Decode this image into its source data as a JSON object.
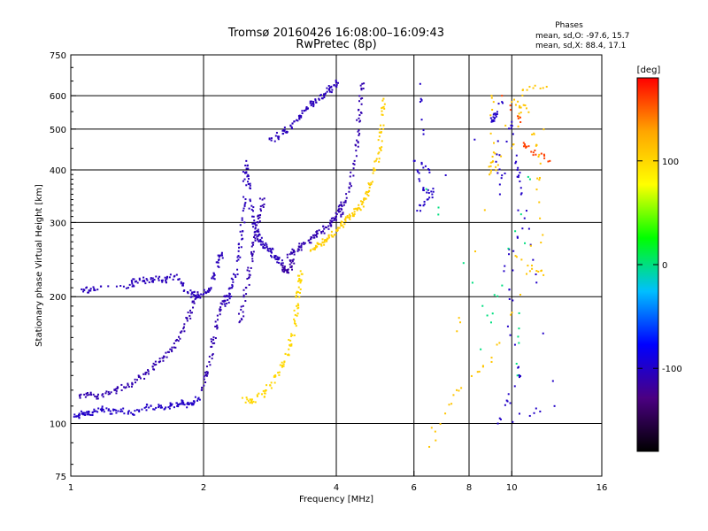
{
  "header": {
    "title_line1": "Tromsø 20160426 16:08:00–16:09:43",
    "title_line2": "RwPretec (8p)"
  },
  "phases_box": {
    "title": "Phases",
    "line_o": "mean, sd,O: -97.6, 15.7",
    "line_x": "mean, sd,X:  88.4, 17.1"
  },
  "chart_data": {
    "type": "scatter",
    "xlabel": "Frequency [MHz]",
    "ylabel": "Stationary phase Virtual Height [km]",
    "x_scale": "log",
    "y_scale": "log",
    "xlim": [
      1,
      16
    ],
    "ylim": [
      75,
      750
    ],
    "x_ticks": [
      1,
      2,
      4,
      6,
      8,
      10,
      16
    ],
    "y_ticks": [
      75,
      100,
      200,
      300,
      400,
      500,
      600,
      750
    ],
    "grid_x": [
      2,
      4,
      6,
      8,
      10
    ],
    "grid_y": [
      100,
      200,
      300,
      400,
      500,
      600
    ],
    "colorbar": {
      "label": "[deg]",
      "range": [
        -180,
        180
      ],
      "ticks": [
        -100,
        0,
        100
      ],
      "colors": [
        "#000000",
        "#4b0082",
        "#0000ff",
        "#00bfff",
        "#00ff00",
        "#ffff00",
        "#ffa500",
        "#ff0000"
      ]
    },
    "series": [
      {
        "phase": -100,
        "points": [
          [
            1.02,
            105
          ],
          [
            1.04,
            104
          ],
          [
            1.07,
            106
          ],
          [
            1.1,
            105
          ],
          [
            1.14,
            107
          ],
          [
            1.18,
            108
          ],
          [
            1.23,
            107
          ],
          [
            1.3,
            108
          ],
          [
            1.37,
            106
          ],
          [
            1.45,
            108
          ],
          [
            1.52,
            110
          ],
          [
            1.6,
            109
          ],
          [
            1.68,
            110
          ],
          [
            1.75,
            111
          ],
          [
            1.8,
            112
          ],
          [
            1.85,
            111
          ],
          [
            1.9,
            113
          ],
          [
            1.95,
            115
          ]
        ]
      },
      {
        "phase": -110,
        "points": [
          [
            1.05,
            115
          ],
          [
            1.1,
            117
          ],
          [
            1.15,
            116
          ],
          [
            1.2,
            118
          ],
          [
            1.26,
            120
          ],
          [
            1.32,
            122
          ],
          [
            1.38,
            124
          ],
          [
            1.44,
            128
          ],
          [
            1.5,
            133
          ],
          [
            1.56,
            138
          ],
          [
            1.62,
            143
          ],
          [
            1.68,
            150
          ],
          [
            1.74,
            158
          ],
          [
            1.8,
            168
          ],
          [
            1.86,
            180
          ],
          [
            1.9,
            195
          ],
          [
            1.94,
            205
          ]
        ]
      },
      {
        "phase": -105,
        "points": [
          [
            1.07,
            208
          ],
          [
            1.1,
            207
          ],
          [
            1.15,
            208
          ],
          [
            1.35,
            210
          ],
          [
            1.4,
            217
          ],
          [
            1.46,
            218
          ],
          [
            1.52,
            220
          ],
          [
            1.58,
            221
          ],
          [
            1.64,
            219
          ],
          [
            1.72,
            224
          ],
          [
            1.78,
            215
          ],
          [
            1.84,
            205
          ],
          [
            1.9,
            202
          ],
          [
            1.96,
            200
          ],
          [
            2.02,
            205
          ],
          [
            2.08,
            210
          ],
          [
            2.12,
            225
          ],
          [
            2.17,
            245
          ],
          [
            2.2,
            252
          ]
        ]
      },
      {
        "phase": -110,
        "points": [
          [
            1.98,
            120
          ],
          [
            2.02,
            130
          ],
          [
            2.06,
            140
          ],
          [
            2.1,
            155
          ],
          [
            2.14,
            170
          ],
          [
            2.18,
            185
          ],
          [
            2.22,
            195
          ],
          [
            2.24,
            200
          ]
        ]
      },
      {
        "phase": -105,
        "points": [
          [
            2.24,
            190
          ],
          [
            2.28,
            200
          ],
          [
            2.32,
            210
          ],
          [
            2.36,
            225
          ],
          [
            2.4,
            250
          ],
          [
            2.44,
            280
          ],
          [
            2.46,
            320
          ],
          [
            2.48,
            380
          ],
          [
            2.5,
            420
          ],
          [
            2.52,
            375
          ],
          [
            2.55,
            340
          ],
          [
            2.58,
            310
          ],
          [
            2.62,
            290
          ],
          [
            2.66,
            280
          ],
          [
            2.7,
            270
          ],
          [
            2.75,
            265
          ],
          [
            2.8,
            260
          ],
          [
            2.85,
            255
          ],
          [
            2.9,
            250
          ],
          [
            2.95,
            245
          ],
          [
            3.0,
            240
          ]
        ]
      },
      {
        "phase": -110,
        "points": [
          [
            2.42,
            175
          ],
          [
            2.46,
            190
          ],
          [
            2.5,
            210
          ],
          [
            2.54,
            230
          ],
          [
            2.58,
            250
          ],
          [
            2.62,
            275
          ],
          [
            2.66,
            300
          ],
          [
            2.7,
            320
          ],
          [
            2.72,
            340
          ]
        ]
      },
      {
        "phase": -115,
        "points": [
          [
            3.0,
            238
          ],
          [
            3.05,
            232
          ],
          [
            3.1,
            230
          ],
          [
            3.15,
            235
          ],
          [
            3.2,
            245
          ]
        ]
      },
      {
        "phase": -110,
        "points": [
          [
            3.1,
            248
          ],
          [
            3.2,
            255
          ],
          [
            3.3,
            262
          ],
          [
            3.4,
            268
          ],
          [
            3.5,
            274
          ],
          [
            3.6,
            280
          ],
          [
            3.7,
            285
          ],
          [
            3.8,
            292
          ],
          [
            3.9,
            300
          ],
          [
            4.0,
            310
          ],
          [
            4.05,
            322
          ],
          [
            4.1,
            335
          ]
        ]
      },
      {
        "phase": -105,
        "points": [
          [
            2.85,
            470
          ],
          [
            2.95,
            480
          ],
          [
            3.05,
            495
          ],
          [
            3.15,
            510
          ],
          [
            3.25,
            525
          ],
          [
            3.35,
            545
          ],
          [
            3.45,
            560
          ],
          [
            3.55,
            575
          ],
          [
            3.65,
            590
          ],
          [
            3.75,
            605
          ],
          [
            3.85,
            620
          ],
          [
            3.95,
            635
          ],
          [
            4.0,
            645
          ]
        ]
      },
      {
        "phase": -110,
        "points": [
          [
            4.1,
            310
          ],
          [
            4.2,
            335
          ],
          [
            4.3,
            370
          ],
          [
            4.4,
            420
          ],
          [
            4.45,
            470
          ],
          [
            4.5,
            530
          ],
          [
            4.55,
            590
          ],
          [
            4.58,
            640
          ]
        ]
      },
      {
        "phase": 100,
        "points": [
          [
            2.45,
            115
          ],
          [
            2.55,
            112
          ],
          [
            2.65,
            116
          ],
          [
            2.75,
            118
          ],
          [
            2.85,
            125
          ],
          [
            2.95,
            132
          ],
          [
            3.05,
            140
          ],
          [
            3.12,
            150
          ],
          [
            3.18,
            162
          ],
          [
            3.22,
            175
          ],
          [
            3.25,
            190
          ],
          [
            3.28,
            205
          ],
          [
            3.3,
            220
          ],
          [
            3.32,
            230
          ]
        ]
      },
      {
        "phase": 105,
        "points": [
          [
            3.5,
            258
          ],
          [
            3.6,
            262
          ],
          [
            3.7,
            266
          ],
          [
            3.8,
            272
          ],
          [
            3.9,
            280
          ],
          [
            4.0,
            288
          ],
          [
            4.1,
            295
          ],
          [
            4.2,
            302
          ],
          [
            4.3,
            310
          ],
          [
            4.4,
            318
          ],
          [
            4.5,
            325
          ],
          [
            4.6,
            335
          ],
          [
            4.7,
            350
          ],
          [
            4.8,
            370
          ],
          [
            4.9,
            400
          ],
          [
            5.0,
            440
          ],
          [
            5.05,
            490
          ],
          [
            5.1,
            540
          ],
          [
            5.12,
            590
          ]
        ]
      },
      {
        "phase": -100,
        "points": [
          [
            6.2,
            640
          ],
          [
            6.5,
            400
          ],
          [
            6.0,
            420
          ],
          [
            6.3,
            360
          ],
          [
            6.6,
            350
          ],
          [
            6.1,
            320
          ],
          [
            9.5,
            580
          ],
          [
            9.0,
            520
          ],
          [
            9.2,
            540
          ],
          [
            9.4,
            350
          ],
          [
            10.0,
            520
          ],
          [
            10.3,
            400
          ],
          [
            10.5,
            350
          ],
          [
            9.8,
            170
          ],
          [
            10.4,
            130
          ],
          [
            9.3,
            100
          ],
          [
            12.5,
            110
          ],
          [
            10.8,
            320
          ],
          [
            9.6,
            230
          ]
        ]
      },
      {
        "phase": 110,
        "points": [
          [
            9.0,
            600
          ],
          [
            9.1,
            440
          ],
          [
            8.9,
            390
          ],
          [
            10.1,
            460
          ],
          [
            10.6,
            620
          ],
          [
            12.0,
            630
          ],
          [
            11.0,
            230
          ],
          [
            9.0,
            140
          ],
          [
            7.5,
            120
          ],
          [
            6.5,
            88
          ],
          [
            10.0,
            580
          ],
          [
            10.8,
            560
          ],
          [
            11.5,
            430
          ],
          [
            11.8,
            225
          ],
          [
            10.2,
            250
          ]
        ]
      },
      {
        "phase": 0,
        "points": [
          [
            6.4,
            360
          ],
          [
            10.3,
            130
          ],
          [
            11.0,
            380
          ],
          [
            8.5,
            150
          ]
        ]
      },
      {
        "phase": 160,
        "points": [
          [
            11.2,
            440
          ],
          [
            10.7,
            460
          ],
          [
            12.2,
            420
          ],
          [
            9.5,
            600
          ]
        ]
      }
    ]
  }
}
